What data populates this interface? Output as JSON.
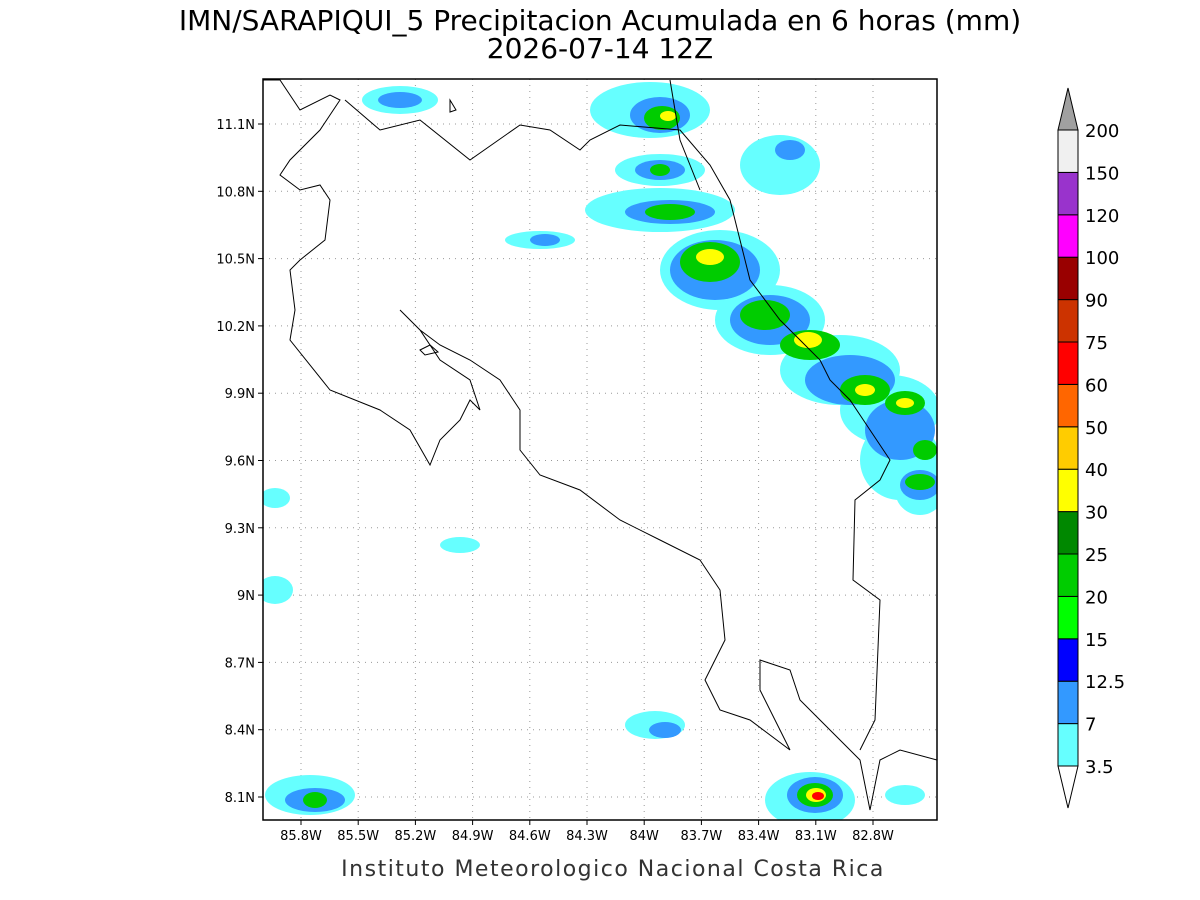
{
  "title": {
    "line1": "IMN/SARAPIQUI_5 Precipitacion Acumulada en 6 horas (mm)",
    "line2": "2026-07-14 12Z"
  },
  "lat_labels": [
    "11.1N",
    "10.8N",
    "10.5N",
    "10.2N",
    "9.9N",
    "9.6N",
    "9.3N",
    "9N",
    "8.7N",
    "8.4N",
    "8.1N"
  ],
  "lon_labels": [
    "85.8W",
    "85.5W",
    "85.2W",
    "84.9W",
    "84.6W",
    "84.3W",
    "84W",
    "83.7W",
    "83.4W",
    "83.1W",
    "82.8W"
  ],
  "colorbar": {
    "levels": [
      3.5,
      7,
      12.5,
      15,
      20,
      25,
      30,
      40,
      50,
      60,
      75,
      90,
      100,
      120,
      150,
      200
    ],
    "colors": [
      "#66ffff",
      "#3399ff",
      "#0000ff",
      "#00ff00",
      "#00cc00",
      "#008800",
      "#ffff00",
      "#ffcc00",
      "#ff6600",
      "#ff0000",
      "#cc3300",
      "#990000",
      "#ff00ff",
      "#9933cc",
      "#f0f0f0"
    ],
    "over_color": "#a0a0a0",
    "under_color": "#ffffff"
  },
  "footer": "Instituto Meteorologico Nacional Costa Rica"
}
